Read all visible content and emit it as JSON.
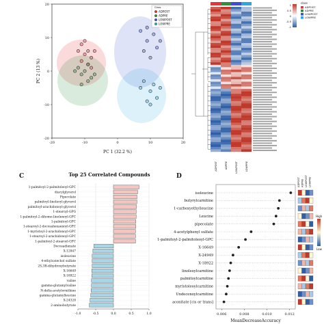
{
  "colors": {
    "adpost": "#e8333b",
    "adpre": "#2f8f3c",
    "lowpost": "#3b4fd0",
    "lowpre": "#2aa7de",
    "pos_bar": "#f4c6c2",
    "neg_bar": "#a9d5e6",
    "heat_hi": "#c0392b",
    "heat_lo": "#2e5fa8"
  },
  "chart_data": [
    {
      "type": "scatter",
      "xlabel": "PC 1 (32.2 %)",
      "ylabel": "PC 2 (13 %)",
      "xlim": [
        -20,
        20
      ],
      "ylim": [
        -20,
        20
      ],
      "xticks": [
        "-20",
        "-10",
        "0",
        "10",
        "20"
      ],
      "yticks": [
        "20",
        "10",
        "0",
        "-10",
        "-20"
      ],
      "legend_title": "Class",
      "legend": [
        "ADPOST",
        "ADPRE",
        "LOWPOST",
        "LOWPRE"
      ],
      "series": [
        {
          "name": "ADPOST",
          "color": "#e8333b",
          "points": [
            [
              -12,
              6
            ],
            [
              -11,
              8
            ],
            [
              -10,
              5
            ],
            [
              -9,
              6
            ],
            [
              -8,
              4
            ],
            [
              -7,
              6
            ],
            [
              -11,
              3
            ],
            [
              -9,
              2
            ],
            [
              -10,
              9
            ],
            [
              -8,
              1
            ]
          ]
        },
        {
          "name": "ADPRE",
          "color": "#2f8f3c",
          "points": [
            [
              -12,
              1
            ],
            [
              -11,
              -1
            ],
            [
              -10,
              0
            ],
            [
              -9,
              -3
            ],
            [
              -8,
              -2
            ],
            [
              -11,
              -4
            ],
            [
              -9,
              2
            ],
            [
              -7,
              -1
            ],
            [
              -13,
              0
            ]
          ]
        },
        {
          "name": "LOWPOST",
          "color": "#3b4fd0",
          "points": [
            [
              7,
              12
            ],
            [
              9,
              9
            ],
            [
              11,
              11
            ],
            [
              12,
              7
            ],
            [
              8,
              6
            ],
            [
              10,
              4
            ],
            [
              13,
              9
            ],
            [
              9,
              13
            ]
          ]
        },
        {
          "name": "LOWPRE",
          "color": "#2aa7de",
          "points": [
            [
              8,
              -3
            ],
            [
              10,
              -6
            ],
            [
              11,
              -4
            ],
            [
              12,
              -8
            ],
            [
              9,
              -9
            ],
            [
              7,
              -5
            ],
            [
              13,
              -5
            ],
            [
              10,
              -10
            ]
          ]
        }
      ]
    },
    {
      "type": "heatmap",
      "legend_title": "class",
      "legend": [
        "ADPOST",
        "ADPRE",
        "LOWPOST",
        "LOWPRE"
      ],
      "scale_labels": [
        "1",
        "0.5",
        "0",
        "-0.5",
        "-1"
      ],
      "columns": [
        "ADPOST",
        "ADPRE",
        "LOWPOST",
        "LOWPRE"
      ]
    },
    {
      "type": "bar",
      "panel_label": "C",
      "title": "Top 25 Correlated Compounds",
      "xticks": [
        "-1.0",
        "-0.5",
        "0.0",
        "0.5",
        "1.0"
      ],
      "categories": [
        "1-palmitoyl-2-palmitoleoyl-GPC",
        "diacylglycerol",
        "Pipecolate",
        "palmitoyl-linoleoyl-glycerol",
        "palmitoyl-arachidonoyl-glycerol",
        "1-stearoyl-GPG",
        "1-palmitoyl-2-dihomo-linolenoyl-GPC",
        "1-palmitoyl-GPC",
        "1-stearoyl-2-docosahexaenoyl-GPC",
        "1-myristoyl-2-arachidonoyl-GPC",
        "1-stearoyl-2-arachidonoyl-GPC",
        "1-palmitoyl-2-stearoyl-GPC",
        "Docosadienate",
        "X-12847",
        "isoleucine",
        "4-ethylcatechol sulfate",
        "2S,3R-dihydroxybutyrate",
        "X-16649",
        "X-18922",
        "valine",
        "gamma-glutamylvaline",
        "N-delta-acetylornithine",
        "gamma-glutamylleucine",
        "X-24328",
        "2-aminobutyrate"
      ],
      "values": [
        0.72,
        0.68,
        0.66,
        0.66,
        0.65,
        0.64,
        0.64,
        0.63,
        0.63,
        0.62,
        0.62,
        0.62,
        -0.55,
        -0.58,
        -0.6,
        -0.6,
        -0.6,
        -0.61,
        -0.61,
        -0.62,
        -0.62,
        -0.63,
        -0.64,
        -0.66,
        -0.68
      ],
      "xlim": [
        -1,
        1
      ]
    },
    {
      "type": "scatter",
      "panel_label": "D",
      "xlabel": "MeanDecreaseAccuracy",
      "xticks": [
        "0.006",
        "0.008",
        "0.010",
        "0.012"
      ],
      "xlim": [
        0.0055,
        0.0125
      ],
      "categories": [
        "isoleucine",
        "butyrylcarnitine",
        "1-carboxyethylleucine",
        "Leucine",
        "pipecolate",
        "4-acetylphenyl sulfate",
        "1-palmitoyl-2-palmitoleoyl-GPC",
        "X-16649",
        "X-24949",
        "X-18922",
        "linoleoylcarnitine",
        "palmitoylcarnitine",
        "myristoleoylcarnitine",
        "Undecenoylcarnitine",
        "aconitate [cis or trans]"
      ],
      "values": [
        0.0121,
        0.0111,
        0.011,
        0.0108,
        0.0106,
        0.0086,
        0.0081,
        0.0075,
        0.007,
        0.0068,
        0.0067,
        0.0066,
        0.0065,
        0.0064,
        0.0062
      ],
      "legend_high": "High",
      "legend_low": "Low",
      "side_columns": [
        "ADPOST",
        "ADPRE",
        "LOWPOST",
        "LOWPRE"
      ]
    }
  ]
}
